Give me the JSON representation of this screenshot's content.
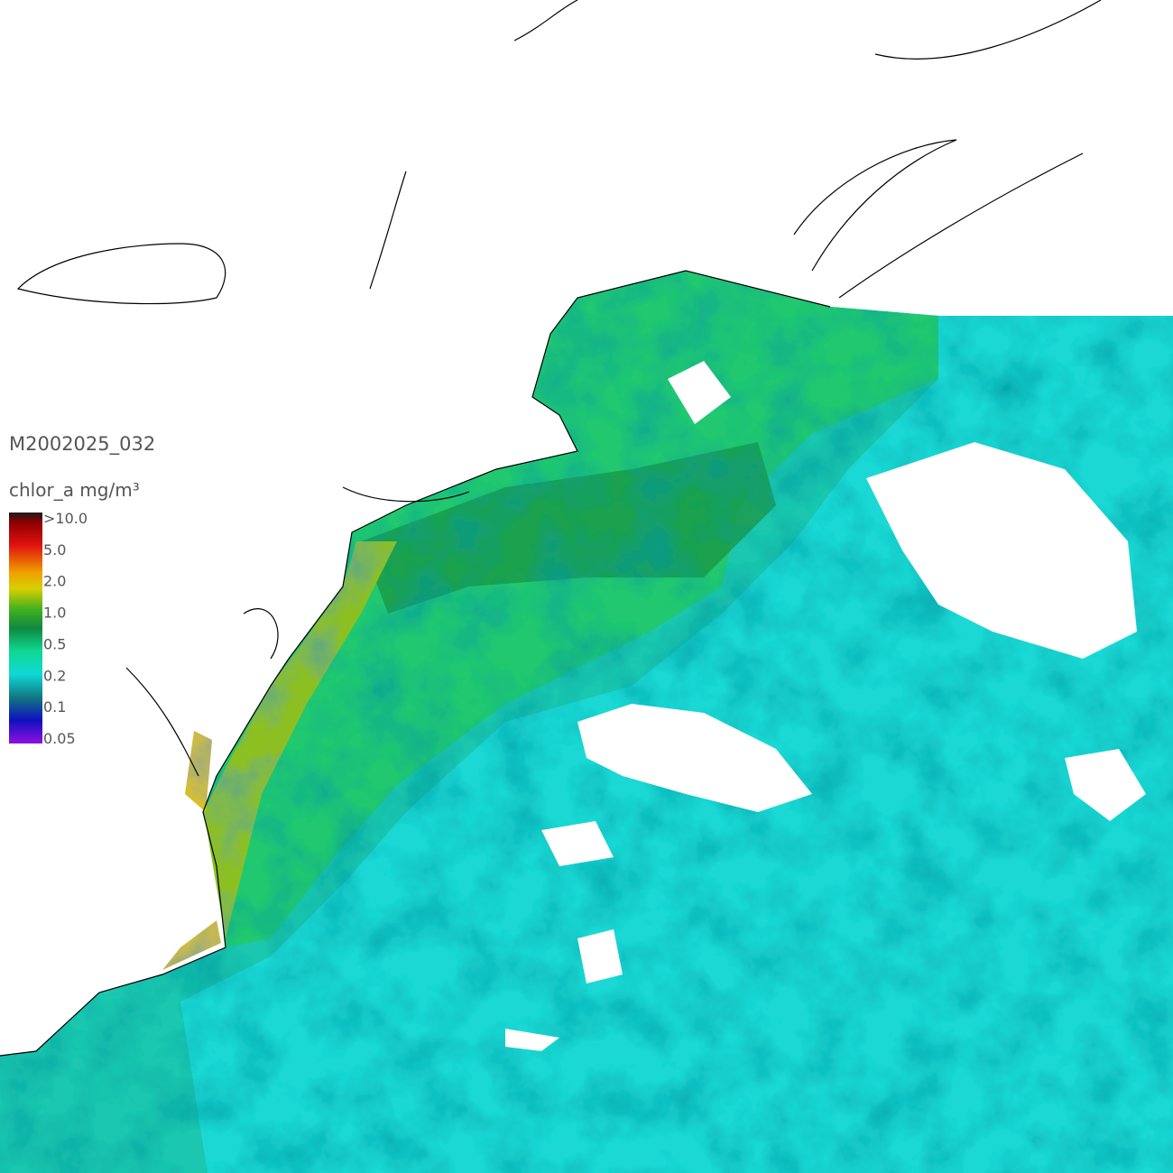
{
  "title": "M2002025_032",
  "colorbar": {
    "label": "chlor_a mg/m³",
    "ticks": [
      ">10.0",
      "5.0",
      "2.0",
      "1.0",
      "0.5",
      "0.2",
      "0.1",
      "0.05"
    ]
  }
}
